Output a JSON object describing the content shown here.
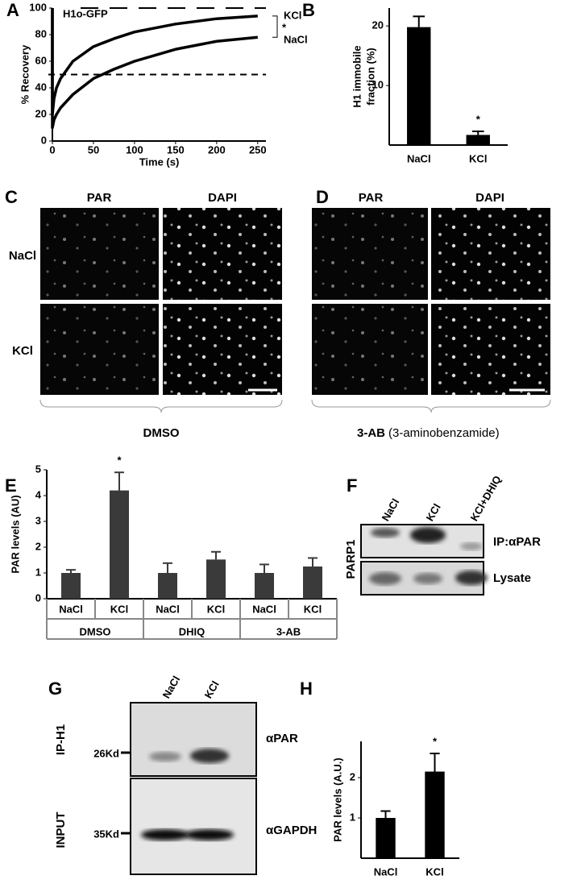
{
  "panels": {
    "letters": [
      "A",
      "B",
      "C",
      "D",
      "E",
      "F",
      "G",
      "H"
    ]
  },
  "chart_data": [
    {
      "type": "line",
      "annotation": "H1o-GFP",
      "x_label": "Time (s)",
      "y_label": "% Recovery",
      "x": [
        0,
        0,
        2,
        5,
        10,
        25,
        50,
        75,
        100,
        150,
        200,
        250
      ],
      "series": [
        {
          "name": "KCl",
          "color": "#000000",
          "values": [
            100,
            20,
            32,
            40,
            47,
            60,
            71,
            77,
            82,
            88,
            92,
            94
          ]
        },
        {
          "name": "NaCl",
          "color": "#000000",
          "values": [
            100,
            10,
            16,
            20,
            25,
            35,
            47,
            54,
            60,
            69,
            75,
            78
          ]
        }
      ],
      "significance": "*",
      "hlines": [
        100,
        50
      ],
      "xlim": [
        0,
        260
      ],
      "ylim": [
        0,
        100
      ],
      "xticks": [
        0,
        50,
        100,
        150,
        200,
        250
      ],
      "yticks": [
        0,
        20,
        40,
        60,
        80,
        100
      ]
    },
    {
      "type": "bar",
      "y_label": [
        "H1 immobile",
        "fraction (%)"
      ],
      "categories": [
        "NaCl",
        "KCl"
      ],
      "values": [
        19.8,
        1.7
      ],
      "errors": [
        1.8,
        0.6
      ],
      "color": "#000000",
      "significance": "*",
      "ylim": [
        0,
        23
      ],
      "yticks": [
        10,
        20
      ]
    },
    {
      "type": "bar",
      "y_label": "PAR levels (AU)",
      "categories": [
        "NaCl",
        "KCl",
        "NaCl",
        "KCl",
        "NaCl",
        "KCl"
      ],
      "groups": [
        "DMSO",
        "DHIQ",
        "3-AB"
      ],
      "values": [
        1,
        4.2,
        1,
        1.52,
        1,
        1.25
      ],
      "errors": [
        0.12,
        0.7,
        0.38,
        0.3,
        0.33,
        0.33
      ],
      "color": "#3a3a3a",
      "significance": "*",
      "ylim": [
        0,
        5
      ],
      "yticks": [
        0,
        1,
        2,
        3,
        4,
        5
      ]
    },
    {
      "type": "bar",
      "y_label": "PAR levels (A.U.)",
      "categories": [
        "NaCl",
        "KCl"
      ],
      "values": [
        1,
        2.15
      ],
      "errors": [
        0.17,
        0.45
      ],
      "color": "#000000",
      "significance": "*",
      "ylim": [
        0,
        2.9
      ],
      "yticks": [
        1,
        2
      ]
    }
  ],
  "microscopy": {
    "C": {
      "columns": [
        "PAR",
        "DAPI"
      ],
      "rows": [
        "NaCl",
        "KCl"
      ],
      "treatment": "DMSO"
    },
    "D": {
      "columns": [
        "PAR",
        "DAPI"
      ],
      "treatment": "3-AB",
      "treatment_note": "(3-aminobenzamide)"
    }
  },
  "blot_F": {
    "side_label": "PARP1",
    "lanes": [
      "NaCl",
      "KCl",
      "KCl+DHIQ"
    ],
    "rows": [
      "IP:αPAR",
      "Lysate"
    ]
  },
  "blot_G": {
    "lanes": [
      "NaCl",
      "KCl"
    ],
    "rows": [
      "αPAR",
      "αGAPDH"
    ],
    "sides": [
      "IP-H1",
      "INPUT"
    ],
    "markers": [
      "26Kd",
      "35Kd"
    ]
  }
}
